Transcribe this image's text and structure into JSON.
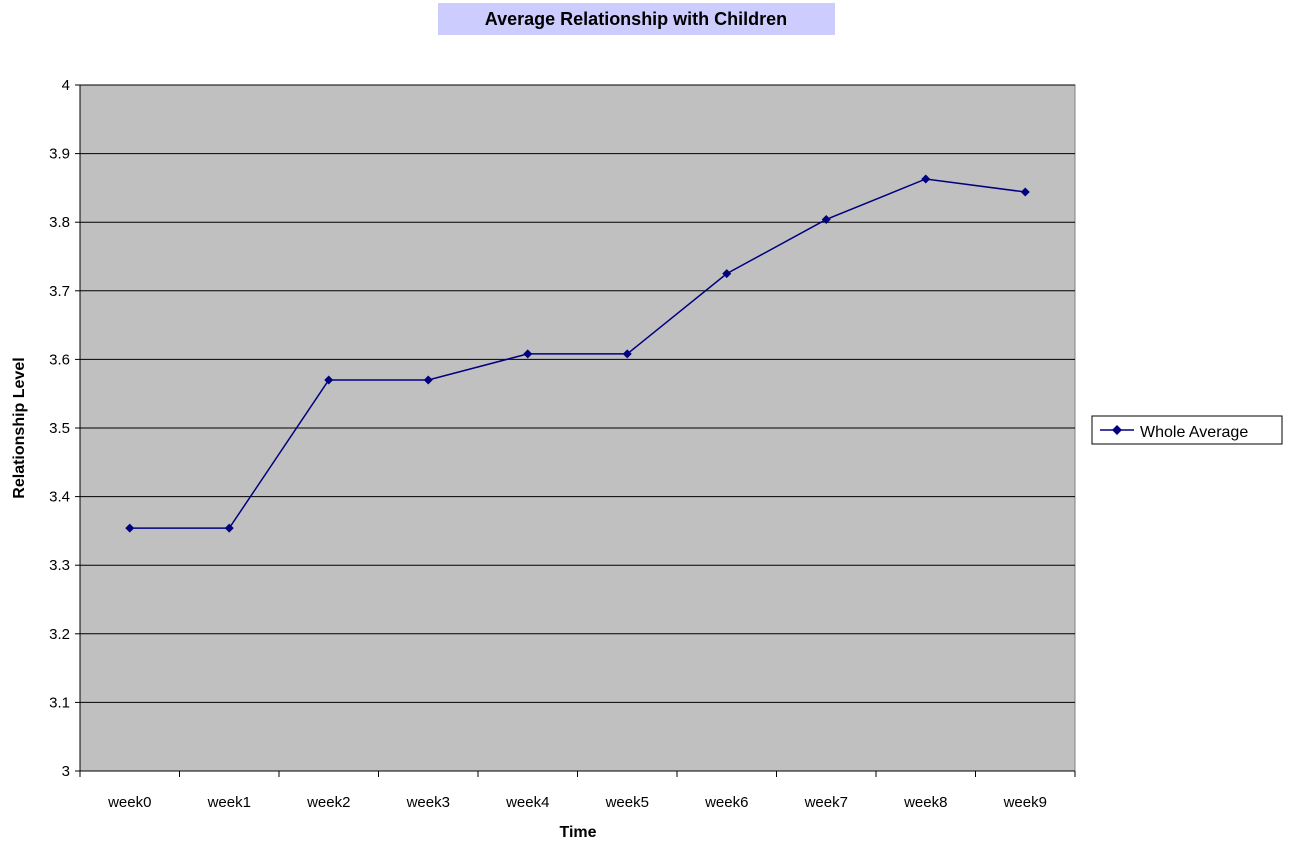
{
  "chart_data": {
    "type": "line",
    "title": "Average Relationship with Children",
    "xlabel": "Time",
    "ylabel": "Relationship Level",
    "categories": [
      "week0",
      "week1",
      "week2",
      "week3",
      "week4",
      "week5",
      "week6",
      "week7",
      "week8",
      "week9"
    ],
    "series": [
      {
        "name": "Whole Average",
        "values": [
          3.354,
          3.354,
          3.57,
          3.57,
          3.608,
          3.608,
          3.725,
          3.804,
          3.863,
          3.844
        ]
      }
    ],
    "ylim": [
      3,
      4
    ],
    "yticks": [
      "3",
      "3.1",
      "3.2",
      "3.3",
      "3.4",
      "3.5",
      "3.6",
      "3.7",
      "3.8",
      "3.9",
      "4"
    ],
    "grid": true,
    "legend_position": "right",
    "colors": {
      "plot_background": "#C0C0C0",
      "series_line": "#000080",
      "title_background": "#CCCCFF",
      "gridline": "#000000"
    }
  }
}
